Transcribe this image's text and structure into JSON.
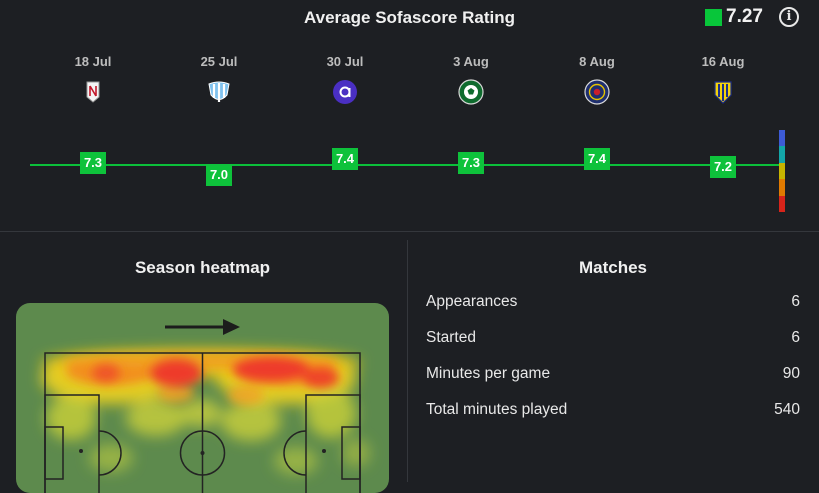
{
  "rating": {
    "title": "Average Sofascore Rating",
    "average": "7.27",
    "average_color": "#08c63a",
    "info_icon": "i",
    "matches": [
      {
        "date": "18 Jul",
        "rating": "7.3",
        "rating_value": 7.3,
        "team_logo": "crest-white-n"
      },
      {
        "date": "25 Jul",
        "rating": "7.0",
        "rating_value": 7.0,
        "team_logo": "crest-blue-white-stripes"
      },
      {
        "date": "30 Jul",
        "rating": "7.4",
        "rating_value": 7.4,
        "team_logo": "crest-purple-a"
      },
      {
        "date": "3 Aug",
        "rating": "7.3",
        "rating_value": 7.3,
        "team_logo": "crest-green-ball"
      },
      {
        "date": "8 Aug",
        "rating": "7.4",
        "rating_value": 7.4,
        "team_logo": "crest-navy-round"
      },
      {
        "date": "16 Aug",
        "rating": "7.2",
        "rating_value": 7.2,
        "team_logo": "crest-yellow-blue"
      }
    ],
    "scale_colors": [
      "#3d5bd6",
      "#13a6a8",
      "#0bc23b",
      "#c7b400",
      "#e07a00",
      "#d7241a"
    ]
  },
  "heatmap": {
    "title": "Season heatmap",
    "direction_icon": "arrow-right-icon",
    "pitch_color": "#5d8a4d"
  },
  "matches_stats": {
    "title": "Matches",
    "rows": [
      {
        "label": "Appearances",
        "value": "6"
      },
      {
        "label": "Started",
        "value": "6"
      },
      {
        "label": "Minutes per game",
        "value": "90"
      },
      {
        "label": "Total minutes played",
        "value": "540"
      }
    ]
  }
}
